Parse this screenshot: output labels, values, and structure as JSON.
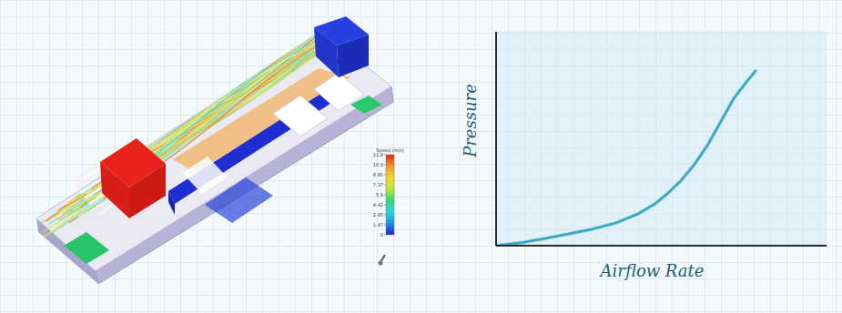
{
  "chart_data": {
    "type": "line",
    "x_label": "Airflow Rate",
    "y_label": "Pressure",
    "x": [
      0,
      8,
      15,
      22,
      29,
      36,
      43,
      48,
      52,
      56,
      60,
      64,
      68,
      72,
      76,
      78.5
    ],
    "values": [
      0,
      1.5,
      3.4,
      5.5,
      7.7,
      10.5,
      14.9,
      19.5,
      24.5,
      30.5,
      38,
      47,
      58,
      69,
      77,
      81.7
    ],
    "color": "#3aa7c2",
    "xlim": [
      0,
      100
    ],
    "ylim": [
      0,
      100
    ],
    "tick_labels": false,
    "grid": false
  },
  "simulation": {
    "colorbar": {
      "title": "Speed (m/s)",
      "range": [
        0,
        11.8
      ],
      "ticks": [
        0,
        1.47,
        2.95,
        4.42,
        5.9,
        7.37,
        8.85,
        10.3,
        11.8
      ]
    }
  }
}
